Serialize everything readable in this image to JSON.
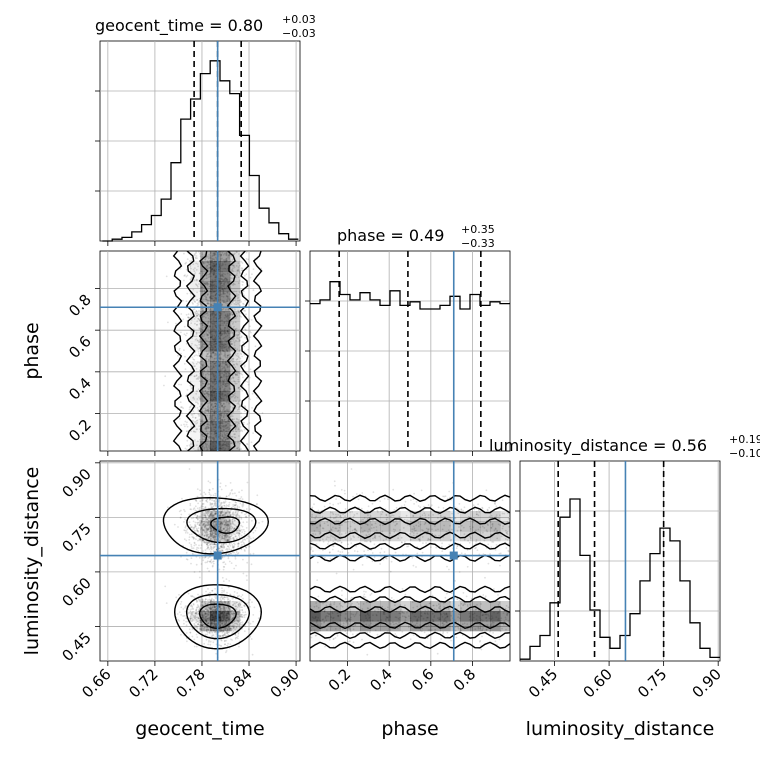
{
  "chart_data": {
    "type": "corner",
    "parameters": [
      "geocent_time",
      "phase",
      "luminosity_distance"
    ],
    "truth_color": "#4682b4",
    "axes": {
      "geocent_time": {
        "range": [
          0.65,
          0.905
        ],
        "ticks": [
          0.66,
          0.72,
          0.78,
          0.84,
          0.9
        ],
        "tick_labels": [
          "0.66",
          "0.72",
          "0.78",
          "0.84",
          "0.90"
        ]
      },
      "phase": {
        "range": [
          0.02,
          0.98
        ],
        "ticks": [
          0.2,
          0.4,
          0.6,
          0.8
        ],
        "tick_labels": [
          "0.2",
          "0.4",
          "0.6",
          "0.8"
        ]
      },
      "luminosity_distance": {
        "range": [
          0.355,
          0.905
        ],
        "ticks": [
          0.45,
          0.6,
          0.75,
          0.9
        ],
        "tick_labels": [
          "0.45",
          "0.60",
          "0.75",
          "0.90"
        ]
      }
    },
    "titles": [
      {
        "param": "geocent_time",
        "text": "geocent_time = 0.80",
        "plus": "+0.03",
        "minus": "−0.03"
      },
      {
        "param": "phase",
        "text": "phase = 0.49",
        "plus": "+0.35",
        "minus": "−0.33"
      },
      {
        "param": "luminosity_distance",
        "text": "luminosity_distance = 0.56",
        "plus": "+0.19",
        "minus": "−0.10"
      }
    ],
    "truths": {
      "geocent_time": 0.8,
      "phase": 0.71,
      "luminosity_distance": 0.645
    },
    "quantiles": {
      "geocent_time": [
        0.77,
        0.8,
        0.83
      ],
      "phase": [
        0.16,
        0.49,
        0.84
      ],
      "luminosity_distance": [
        0.46,
        0.56,
        0.75
      ]
    },
    "histograms": {
      "geocent_time": {
        "edges_start": 0.653,
        "bin_width": 0.0125,
        "counts": [
          0,
          0.01,
          0.02,
          0.05,
          0.09,
          0.14,
          0.23,
          0.43,
          0.67,
          0.78,
          0.92,
          0.99,
          0.88,
          0.81,
          0.58,
          0.36,
          0.18,
          0.1,
          0.04,
          0.01
        ]
      },
      "phase": {
        "edges_start": 0.02,
        "bin_width": 0.048,
        "counts": [
          0.81,
          0.83,
          0.93,
          0.86,
          0.83,
          0.87,
          0.83,
          0.8,
          0.88,
          0.8,
          0.82,
          0.78,
          0.78,
          0.8,
          0.85,
          0.78,
          0.86,
          0.8,
          0.82,
          0.81
        ]
      },
      "luminosity_distance": {
        "edges_start": 0.355,
        "bin_width": 0.0275,
        "counts": [
          0.01,
          0.08,
          0.14,
          0.32,
          0.79,
          0.89,
          0.58,
          0.28,
          0.13,
          0.07,
          0.14,
          0.26,
          0.44,
          0.59,
          0.73,
          0.66,
          0.44,
          0.21,
          0.07,
          0.02
        ]
      }
    },
    "grid": true
  }
}
